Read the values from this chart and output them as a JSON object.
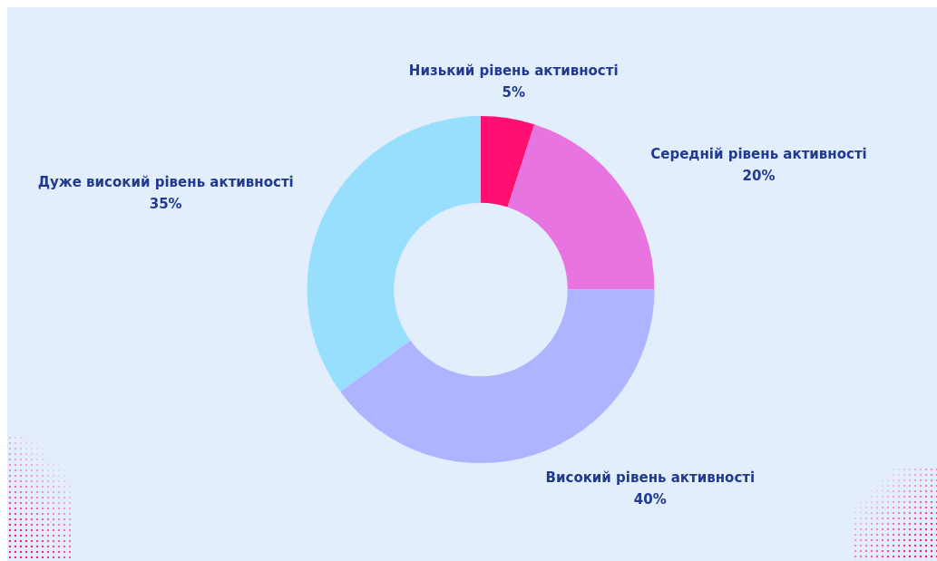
{
  "chart_data": {
    "type": "donut",
    "categories": [
      "Низький рівень активності",
      "Середній рівень активності",
      "Високий рівень активності",
      "Дуже високий рівень активності"
    ],
    "values": [
      5,
      20,
      40,
      35
    ],
    "value_labels": [
      "5%",
      "20%",
      "40%",
      "35%"
    ],
    "colors": [
      "#ff1070",
      "#e874e0",
      "#aeb4ff",
      "#98dffe"
    ],
    "legend": false
  }
}
